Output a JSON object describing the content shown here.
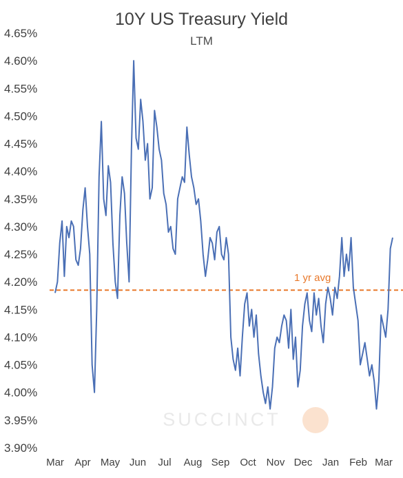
{
  "chart_data": {
    "type": "line",
    "title": "10Y US Treasury Yield",
    "subtitle": "LTM",
    "xlabel": "",
    "ylabel": "",
    "ylim": [
      3.9,
      4.65
    ],
    "yticks": [
      3.9,
      3.95,
      4.0,
      4.05,
      4.1,
      4.15,
      4.2,
      4.25,
      4.3,
      4.35,
      4.4,
      4.45,
      4.5,
      4.55,
      4.6,
      4.65
    ],
    "ytick_labels": [
      "3.90%",
      "3.95%",
      "4.00%",
      "4.05%",
      "4.10%",
      "4.15%",
      "4.20%",
      "4.25%",
      "4.30%",
      "4.35%",
      "4.40%",
      "4.45%",
      "4.50%",
      "4.55%",
      "4.60%",
      "4.65%"
    ],
    "xtick_labels": [
      "Mar",
      "Apr",
      "May",
      "Jun",
      "Jul",
      "Aug",
      "Sep",
      "Oct",
      "Nov",
      "Dec",
      "Jan",
      "Feb",
      "Mar"
    ],
    "grid": false,
    "line_color": "#4a6fb5",
    "series": [
      {
        "values": [
          4.18,
          4.2,
          4.27,
          4.31,
          4.21,
          4.3,
          4.28,
          4.31,
          4.3,
          4.24,
          4.23,
          4.26,
          4.33,
          4.37,
          4.3,
          4.25,
          4.05,
          4.0,
          4.15,
          4.39,
          4.49,
          4.35,
          4.32,
          4.41,
          4.38,
          4.27,
          4.2,
          4.17,
          4.32,
          4.39,
          4.36,
          4.27,
          4.2,
          4.44,
          4.6,
          4.46,
          4.44,
          4.53,
          4.49,
          4.42,
          4.45,
          4.35,
          4.37,
          4.51,
          4.48,
          4.44,
          4.42,
          4.36,
          4.34,
          4.29,
          4.3,
          4.26,
          4.25,
          4.35,
          4.37,
          4.39,
          4.38,
          4.48,
          4.43,
          4.39,
          4.37,
          4.34,
          4.35,
          4.31,
          4.25,
          4.21,
          4.24,
          4.28,
          4.27,
          4.24,
          4.29,
          4.3,
          4.25,
          4.24,
          4.28,
          4.25,
          4.1,
          4.06,
          4.04,
          4.08,
          4.03,
          4.1,
          4.16,
          4.18,
          4.12,
          4.15,
          4.1,
          4.14,
          4.07,
          4.03,
          4.0,
          3.98,
          4.01,
          3.97,
          4.01,
          4.08,
          4.1,
          4.09,
          4.12,
          4.14,
          4.13,
          4.08,
          4.15,
          4.06,
          4.1,
          4.01,
          4.04,
          4.12,
          4.16,
          4.18,
          4.13,
          4.11,
          4.18,
          4.14,
          4.17,
          4.12,
          4.09,
          4.16,
          4.19,
          4.17,
          4.14,
          4.19,
          4.17,
          4.21,
          4.28,
          4.21,
          4.25,
          4.22,
          4.28,
          4.19,
          4.16,
          4.13,
          4.05,
          4.07,
          4.09,
          4.06,
          4.03,
          4.05,
          4.02,
          3.97,
          4.02,
          4.14,
          4.12,
          4.1,
          4.15,
          4.26,
          4.28
        ]
      }
    ],
    "reference_lines": [
      {
        "label": "1 yr avg",
        "value": 4.185,
        "color": "#e8782a"
      }
    ]
  },
  "watermark": {
    "text": "SUCCINCT"
  }
}
